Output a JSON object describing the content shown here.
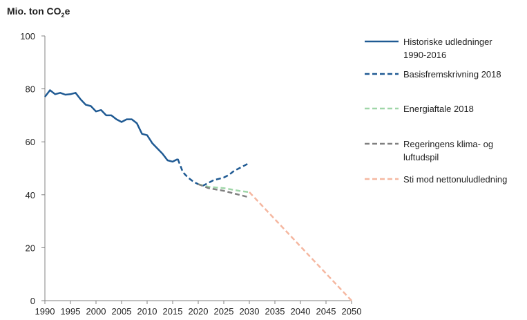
{
  "chart_data": {
    "type": "line",
    "y_unit_label": {
      "prefix": "Mio. ton CO",
      "subscript": "2",
      "suffix": "e"
    },
    "xlim": [
      1990,
      2050
    ],
    "ylim": [
      0,
      100
    ],
    "x_ticks": [
      1990,
      1995,
      2000,
      2005,
      2010,
      2015,
      2020,
      2025,
      2030,
      2035,
      2040,
      2045,
      2050
    ],
    "y_ticks": [
      0,
      20,
      40,
      60,
      80,
      100
    ],
    "grid": false,
    "legend_position": "right",
    "series": [
      {
        "name": "Historiske udledninger 1990-2016",
        "legend_lines": [
          "Historiske udledninger",
          "1990-2016"
        ],
        "color": "#1f5a93",
        "style": "solid",
        "x": [
          1990,
          1991,
          1992,
          1993,
          1994,
          1995,
          1996,
          1997,
          1998,
          1999,
          2000,
          2001,
          2002,
          2003,
          2004,
          2005,
          2006,
          2007,
          2008,
          2009,
          2010,
          2011,
          2012,
          2013,
          2014,
          2015,
          2016
        ],
        "y": [
          77,
          79.5,
          78,
          78.5,
          77.8,
          78,
          78.5,
          76,
          74,
          73.5,
          71.5,
          72,
          70,
          70,
          68.5,
          67.5,
          68.5,
          68.5,
          67,
          63,
          62.5,
          59.5,
          57.5,
          55.5,
          53,
          52.5,
          53.5
        ]
      },
      {
        "name": "Basisfremskrivning 2018",
        "legend_lines": [
          "Basisfremskrivning 2018"
        ],
        "color": "#1f5a93",
        "style": "dashed",
        "x": [
          2016,
          2017,
          2018,
          2019,
          2020,
          2021,
          2022,
          2023,
          2024,
          2025,
          2026,
          2027,
          2028,
          2029,
          2030
        ],
        "y": [
          53.5,
          48.5,
          46.5,
          45,
          44,
          43.5,
          44.5,
          45.5,
          46,
          46.5,
          47.5,
          49,
          50,
          51,
          52
        ]
      },
      {
        "name": "Energiaftale 2018",
        "legend_lines": [
          "Energiaftale 2018"
        ],
        "color": "#9fd6a8",
        "style": "dashed",
        "x": [
          2020,
          2022,
          2025,
          2028,
          2030
        ],
        "y": [
          44,
          43,
          42.5,
          41.5,
          41
        ]
      },
      {
        "name": "Regeringens klima- og luftudspil",
        "legend_lines": [
          "Regeringens klima- og",
          "luftudspil"
        ],
        "color": "#808080",
        "style": "dashed",
        "x": [
          2020,
          2022,
          2025,
          2028,
          2030
        ],
        "y": [
          44,
          42.5,
          41.5,
          40,
          39
        ]
      },
      {
        "name": "Sti mod nettonuludledning",
        "legend_lines": [
          "Sti mod nettonuludledning"
        ],
        "color": "#f5b7a0",
        "style": "dashed",
        "x": [
          2030,
          2050
        ],
        "y": [
          41,
          0
        ]
      }
    ]
  }
}
